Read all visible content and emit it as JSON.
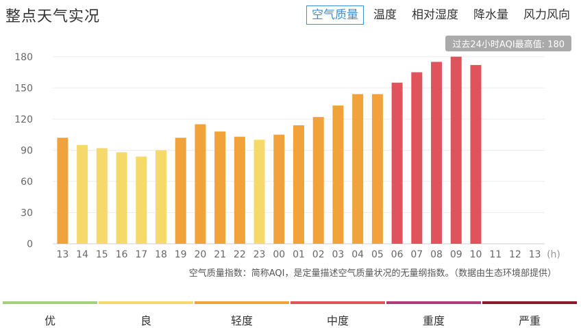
{
  "header": {
    "title": "整点天气实况",
    "tabs": [
      {
        "label": "空气质量",
        "active": true
      },
      {
        "label": "温度",
        "active": false
      },
      {
        "label": "相对湿度",
        "active": false
      },
      {
        "label": "降水量",
        "active": false
      },
      {
        "label": "风力风向",
        "active": false
      }
    ]
  },
  "max_badge": "过去24小时AQI最高值: 180",
  "note": "空气质量指数：简称AQI，是定量描述空气质量状况的无量纲指数。（数据由生态环境部提供）",
  "legend": [
    {
      "label": "优",
      "color": "#a3cf82"
    },
    {
      "label": "良",
      "color": "#f5d96a"
    },
    {
      "label": "轻度",
      "color": "#f2a23a"
    },
    {
      "label": "中度",
      "color": "#e0525c"
    },
    {
      "label": "重度",
      "color": "#b03a7a"
    },
    {
      "label": "严重",
      "color": "#8a1a2a"
    }
  ],
  "chart_data": {
    "type": "bar",
    "categories": [
      "13",
      "14",
      "15",
      "16",
      "17",
      "18",
      "19",
      "20",
      "21",
      "22",
      "23",
      "00",
      "01",
      "02",
      "03",
      "04",
      "05",
      "06",
      "07",
      "08",
      "09",
      "10",
      "11",
      "12",
      "13"
    ],
    "values": [
      102,
      95,
      92,
      88,
      84,
      90,
      102,
      115,
      108,
      103,
      100,
      105,
      114,
      122,
      133,
      144,
      144,
      155,
      165,
      175,
      180,
      172,
      null,
      null,
      null
    ],
    "colors": [
      "#f2a23a",
      "#f5d96a",
      "#f5d96a",
      "#f5d96a",
      "#f5d96a",
      "#f5d96a",
      "#f2a23a",
      "#f2a23a",
      "#f2a23a",
      "#f2a23a",
      "#f5d96a",
      "#f2a23a",
      "#f2a23a",
      "#f2a23a",
      "#f2a23a",
      "#f2a23a",
      "#f2a23a",
      "#e0525c",
      "#e0525c",
      "#e0525c",
      "#e0525c",
      "#e0525c",
      null,
      null,
      null
    ],
    "yticks": [
      0,
      30,
      60,
      90,
      120,
      150,
      180
    ],
    "ylim": [
      0,
      195
    ],
    "xunit": "(h)",
    "grid": true
  }
}
